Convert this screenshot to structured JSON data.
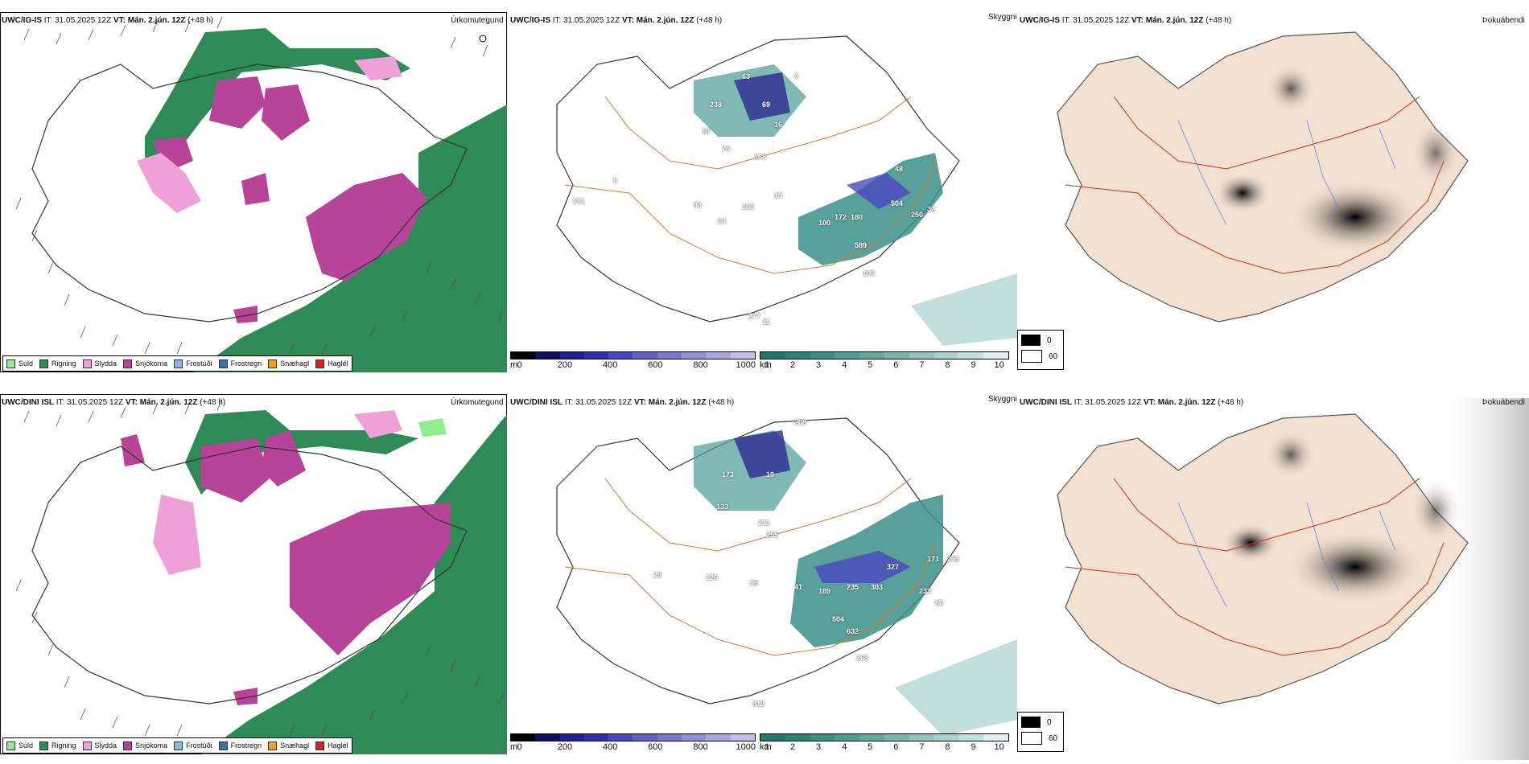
{
  "rows": [
    {
      "panels": {
        "precip": {
          "model": "UWC/IG-IS",
          "it_label": "IT:",
          "it_value": "31.05.2025 12Z",
          "vt_label": "VT:",
          "vt_value": "Mán. 2.jún. 12Z",
          "lead": "(+48 h)",
          "title_right": "Úrkomutegund"
        },
        "ceiling": {
          "model": "UWC/IG-IS",
          "it_label": "IT:",
          "it_value": "31.05.2025 12Z",
          "vt_label": "VT:",
          "vt_value": "Mán. 2.jún. 12Z",
          "lead": "(+48 h)",
          "title_right": "Skyggni"
        },
        "fog": {
          "model": "UWC/IG-IS",
          "it_label": "IT:",
          "it_value": "31.05.2025 12Z",
          "vt_label": "VT:",
          "vt_value": "Mán. 2.jún. 12Z",
          "lead": "(+48 h)",
          "title_right": "Þokuábendi"
        }
      },
      "ceiling_labels": [
        "63",
        "238",
        "69",
        "10",
        "76",
        "16",
        "168",
        "9",
        "211",
        "88",
        "108",
        "15",
        "64",
        "100",
        "172",
        "180",
        "504",
        "250",
        "32",
        "589",
        "195",
        "11",
        "277",
        "4",
        "48"
      ]
    },
    {
      "panels": {
        "precip": {
          "model": "UWC/DINI ISL",
          "it_label": "IT:",
          "it_value": "31.05.2025 12Z",
          "vt_label": "VT:",
          "vt_value": "Mán. 2.jún. 12Z",
          "lead": "(+48 h)",
          "title_right": "Úrkomutegund"
        },
        "ceiling": {
          "model": "UWC/DINI ISL",
          "it_label": "IT:",
          "it_value": "31.05.2025 12Z",
          "vt_label": "VT:",
          "vt_value": "Mán. 2.jún. 12Z",
          "lead": "(+48 h)",
          "title_right": "Skyggni"
        },
        "fog": {
          "model": "UWC/DINI ISL",
          "it_label": "IT:",
          "it_value": "31.05.2025 12Z",
          "vt_label": "VT:",
          "vt_value": "Mán. 2.jún. 12Z",
          "lead": "(+48 h)",
          "title_right": "Þokuábendi"
        }
      },
      "ceiling_labels": [
        "288",
        "173",
        "10",
        "133",
        "211",
        "255",
        "23",
        "126",
        "36",
        "41",
        "189",
        "235",
        "303",
        "327",
        "171",
        "292",
        "233",
        "504",
        "632",
        "263",
        "312",
        "80"
      ]
    }
  ],
  "precip_legend": [
    {
      "label": "Súld",
      "color": "#90ee90"
    },
    {
      "label": "Rigning",
      "color": "#2e8b57"
    },
    {
      "label": "Slydda",
      "color": "#f0a0d8"
    },
    {
      "label": "Snjókoma",
      "color": "#b8449a"
    },
    {
      "label": "Frostúði",
      "color": "#87b8e8"
    },
    {
      "label": "Frostregn",
      "color": "#3070c0"
    },
    {
      "label": "Snæhagl",
      "color": "#f0a020"
    },
    {
      "label": "Haglél",
      "color": "#e02020"
    }
  ],
  "height_bar": {
    "unit": "m",
    "ticks": [
      "0",
      "200",
      "400",
      "600",
      "800",
      "1000"
    ],
    "colors": [
      "#000000",
      "#101060",
      "#202090",
      "#3030b0",
      "#4848c0",
      "#6060c8",
      "#7878d0",
      "#9090d8",
      "#a8a8e0",
      "#c0c0e8"
    ]
  },
  "vis_bar": {
    "unit": "km",
    "ticks": [
      "1",
      "2",
      "3",
      "4",
      "5",
      "6",
      "7",
      "8",
      "9",
      "10"
    ],
    "colors": [
      "#1e7a70",
      "#2a8478",
      "#3a9088",
      "#4c9c94",
      "#60a8a0",
      "#78b6ae",
      "#90c4bc",
      "#aad2cc",
      "#c4e0dc",
      "#e0f0ee"
    ]
  },
  "fog_legend": [
    {
      "label": "0"
    },
    {
      "label": "60"
    }
  ]
}
